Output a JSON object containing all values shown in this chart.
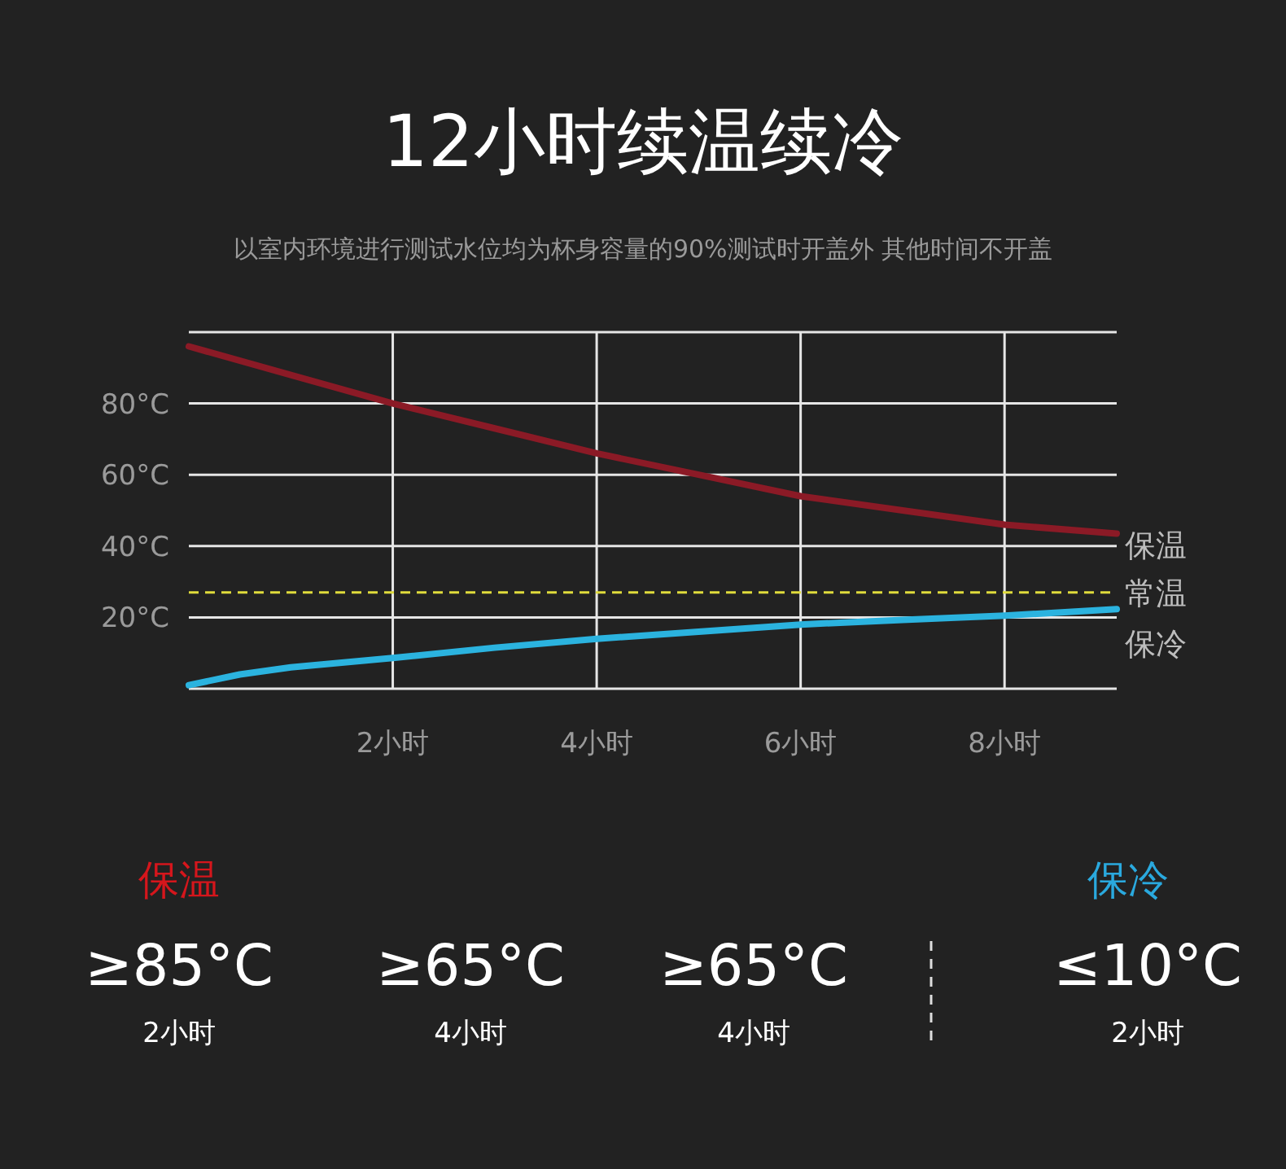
{
  "chart_data": [
    {
      "type": "line",
      "title": "12小时续温续冷",
      "subtitle": "以室内环境进行测试水位均为杯身容量的90%测试时开盖外 其他时间不开盖",
      "xlim": [
        0,
        9.1
      ],
      "ylim": [
        0,
        100
      ],
      "xticks": [
        {
          "value": 2,
          "label": "2小时"
        },
        {
          "value": 4,
          "label": "4小时"
        },
        {
          "value": 6,
          "label": "6小时"
        },
        {
          "value": 8,
          "label": "8小时"
        }
      ],
      "yticks": [
        {
          "value": 20,
          "label": "20°C"
        },
        {
          "value": 40,
          "label": "40°C"
        },
        {
          "value": 60,
          "label": "60°C"
        },
        {
          "value": 80,
          "label": "80°C"
        }
      ],
      "grid": true,
      "marker": "none",
      "line_style": "solid",
      "series": [
        {
          "name": "保温",
          "color": "#8b1a26",
          "x": [
            0,
            1,
            2,
            3,
            4,
            5,
            6,
            7,
            8,
            9.1
          ],
          "values": [
            96,
            88,
            80,
            73,
            66,
            60,
            54,
            50,
            46,
            43.5
          ]
        },
        {
          "name": "保冷",
          "color": "#2bb3df",
          "x": [
            0,
            0.5,
            1,
            2,
            3,
            4,
            5,
            6,
            7,
            8,
            9.1
          ],
          "values": [
            1,
            4,
            6,
            8.6,
            11.5,
            14,
            16,
            18,
            19.3,
            20.5,
            22.3
          ]
        }
      ],
      "ref_lines": [
        {
          "axis": "y",
          "value": 27,
          "label": "常温",
          "color": "#e0dc3c",
          "line_style": "dashed"
        }
      ]
    },
    {
      "type": "other",
      "annotations": [
        "保温",
        "≥85°C",
        "2小时",
        "≥65°C",
        "4小时",
        "≥65°C",
        "4小时",
        "保冷",
        "≤10°C",
        "2小时"
      ]
    }
  ]
}
